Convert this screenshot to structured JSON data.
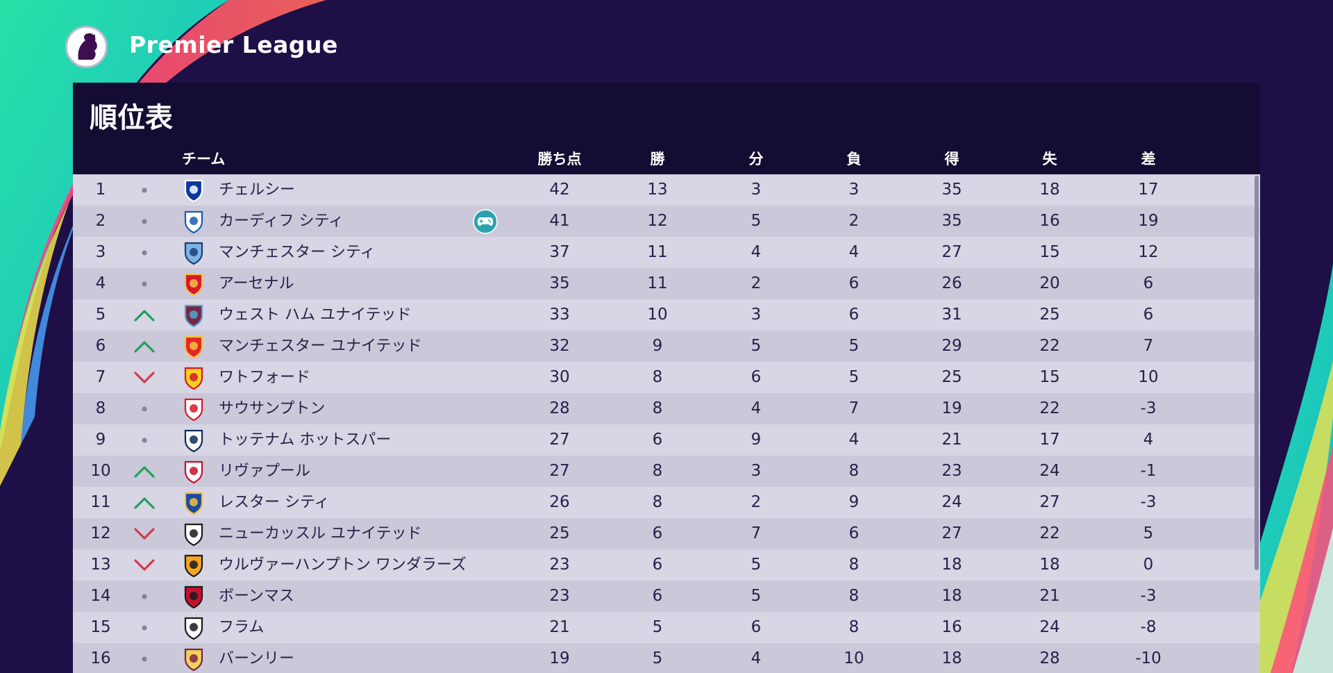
{
  "header": {
    "league_title": "Premier League",
    "league_logo_icon": "premier-league-lion-icon"
  },
  "panel": {
    "title": "順位表"
  },
  "columns": {
    "team": "チーム",
    "points": "勝ち点",
    "won": "勝",
    "drawn": "分",
    "lost": "負",
    "goals_for": "得",
    "goals_against": "失",
    "goal_diff": "差"
  },
  "colors": {
    "up": "#1fa05a",
    "down": "#d33a4a",
    "same": "#85829a",
    "row_odd": "#d8d5e4",
    "row_even": "#cbc8da",
    "controller_badge": "#2ba2ae"
  },
  "rows": [
    {
      "rank": "1",
      "trend": "same",
      "team": "チェルシー",
      "crest": "chelsea-crest-icon",
      "pts": "42",
      "w": "13",
      "d": "3",
      "l": "3",
      "gf": "35",
      "ga": "18",
      "gd": "17"
    },
    {
      "rank": "2",
      "trend": "same",
      "team": "カーディフ シティ",
      "crest": "cardiff-crest-icon",
      "controller": "gamepad-icon",
      "pts": "41",
      "w": "12",
      "d": "5",
      "l": "2",
      "gf": "35",
      "ga": "16",
      "gd": "19"
    },
    {
      "rank": "3",
      "trend": "same",
      "team": "マンチェスター シティ",
      "crest": "man-city-crest-icon",
      "pts": "37",
      "w": "11",
      "d": "4",
      "l": "4",
      "gf": "27",
      "ga": "15",
      "gd": "12"
    },
    {
      "rank": "4",
      "trend": "same",
      "team": "アーセナル",
      "crest": "arsenal-crest-icon",
      "pts": "35",
      "w": "11",
      "d": "2",
      "l": "6",
      "gf": "26",
      "ga": "20",
      "gd": "6"
    },
    {
      "rank": "5",
      "trend": "up",
      "team": "ウェスト ハム ユナイテッド",
      "crest": "west-ham-crest-icon",
      "pts": "33",
      "w": "10",
      "d": "3",
      "l": "6",
      "gf": "31",
      "ga": "25",
      "gd": "6"
    },
    {
      "rank": "6",
      "trend": "up",
      "team": "マンチェスター ユナイテッド",
      "crest": "man-united-crest-icon",
      "pts": "32",
      "w": "9",
      "d": "5",
      "l": "5",
      "gf": "29",
      "ga": "22",
      "gd": "7"
    },
    {
      "rank": "7",
      "trend": "down",
      "team": "ワトフォード",
      "crest": "watford-crest-icon",
      "pts": "30",
      "w": "8",
      "d": "6",
      "l": "5",
      "gf": "25",
      "ga": "15",
      "gd": "10"
    },
    {
      "rank": "8",
      "trend": "same",
      "team": "サウサンプトン",
      "crest": "southampton-crest-icon",
      "pts": "28",
      "w": "8",
      "d": "4",
      "l": "7",
      "gf": "19",
      "ga": "22",
      "gd": "-3"
    },
    {
      "rank": "9",
      "trend": "same",
      "team": "トッテナム ホットスパー",
      "crest": "tottenham-crest-icon",
      "pts": "27",
      "w": "6",
      "d": "9",
      "l": "4",
      "gf": "21",
      "ga": "17",
      "gd": "4"
    },
    {
      "rank": "10",
      "trend": "up",
      "team": "リヴァプール",
      "crest": "liverpool-crest-icon",
      "pts": "27",
      "w": "8",
      "d": "3",
      "l": "8",
      "gf": "23",
      "ga": "24",
      "gd": "-1"
    },
    {
      "rank": "11",
      "trend": "up",
      "team": "レスター シティ",
      "crest": "leicester-crest-icon",
      "pts": "26",
      "w": "8",
      "d": "2",
      "l": "9",
      "gf": "24",
      "ga": "27",
      "gd": "-3"
    },
    {
      "rank": "12",
      "trend": "down",
      "team": "ニューカッスル ユナイテッド",
      "crest": "newcastle-crest-icon",
      "pts": "25",
      "w": "6",
      "d": "7",
      "l": "6",
      "gf": "27",
      "ga": "22",
      "gd": "5"
    },
    {
      "rank": "13",
      "trend": "down",
      "team": "ウルヴァーハンプトン ワンダラーズ",
      "crest": "wolves-crest-icon",
      "pts": "23",
      "w": "6",
      "d": "5",
      "l": "8",
      "gf": "18",
      "ga": "18",
      "gd": "0"
    },
    {
      "rank": "14",
      "trend": "same",
      "team": "ボーンマス",
      "crest": "bournemouth-crest-icon",
      "pts": "23",
      "w": "6",
      "d": "5",
      "l": "8",
      "gf": "18",
      "ga": "21",
      "gd": "-3"
    },
    {
      "rank": "15",
      "trend": "same",
      "team": "フラム",
      "crest": "fulham-crest-icon",
      "pts": "21",
      "w": "5",
      "d": "6",
      "l": "8",
      "gf": "16",
      "ga": "24",
      "gd": "-8"
    },
    {
      "rank": "16",
      "trend": "same",
      "team": "バーンリー",
      "crest": "burnley-crest-icon",
      "pts": "19",
      "w": "5",
      "d": "4",
      "l": "10",
      "gf": "18",
      "ga": "28",
      "gd": "-10"
    }
  ]
}
